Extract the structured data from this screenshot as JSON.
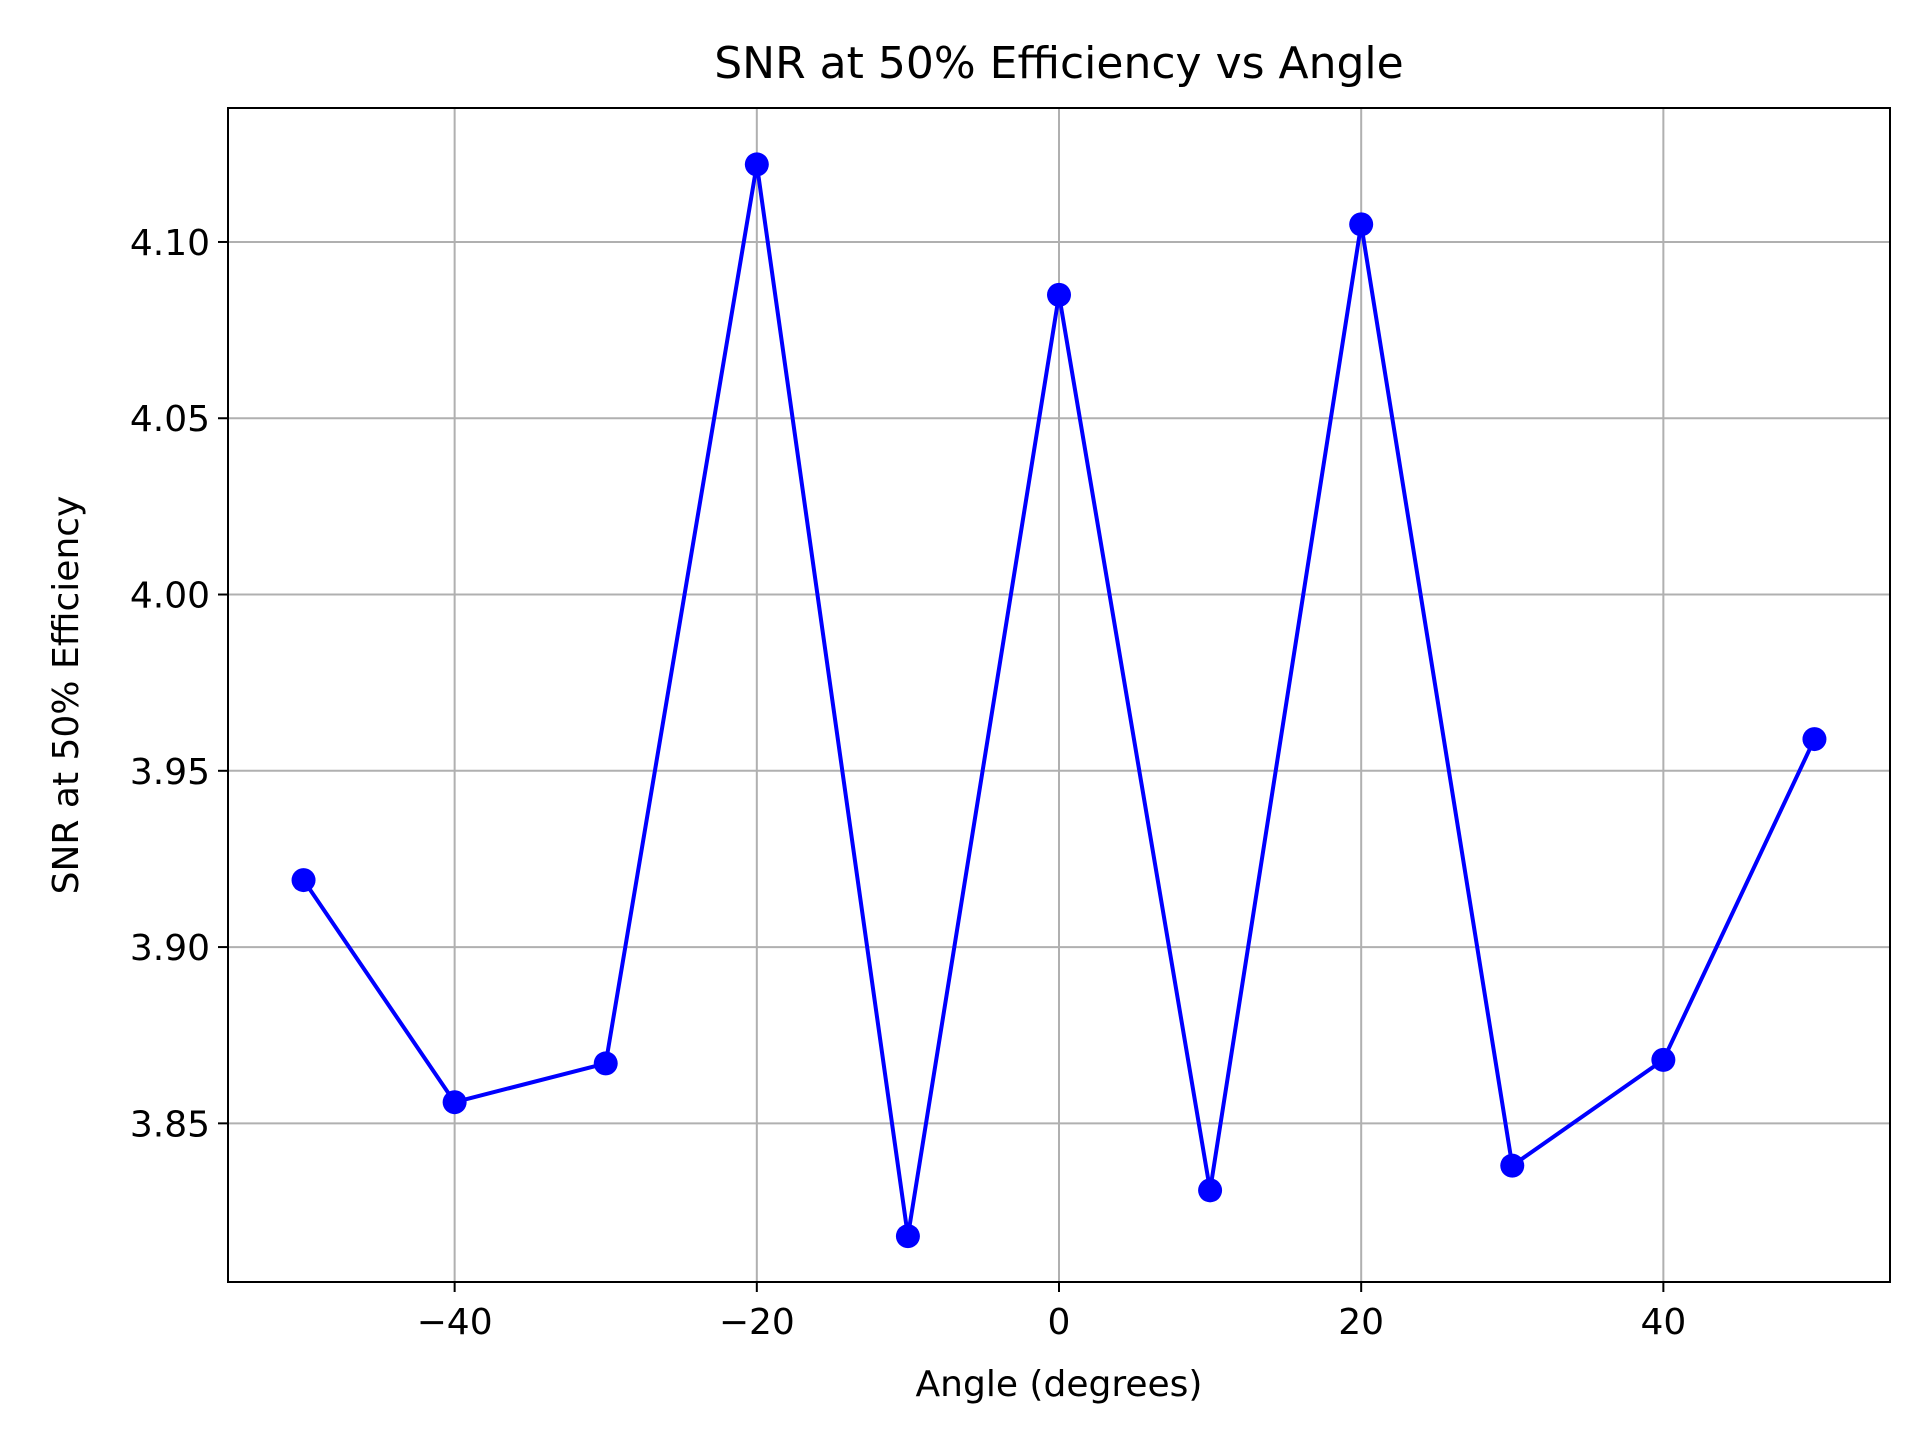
{
  "chart_data": {
    "type": "line",
    "title": "SNR at 50% Efficiency vs Angle",
    "xlabel": "Angle (degrees)",
    "ylabel": "SNR at 50% Efficiency",
    "xlim": [
      -55,
      55
    ],
    "ylim": [
      3.805,
      4.138
    ],
    "xticks": [
      -40,
      -20,
      0,
      20,
      40
    ],
    "xtick_labels": [
      "−40",
      "−20",
      "0",
      "20",
      "40"
    ],
    "yticks": [
      3.85,
      3.9,
      3.95,
      4.0,
      4.05,
      4.1
    ],
    "ytick_labels": [
      "3.85",
      "3.90",
      "3.95",
      "4.00",
      "4.05",
      "4.10"
    ],
    "grid": true,
    "series": [
      {
        "color": "#0000ff",
        "marker": "circle",
        "x": [
          -50,
          -40,
          -30,
          -20,
          -10,
          0,
          10,
          20,
          30,
          40,
          50
        ],
        "y": [
          3.919,
          3.856,
          3.867,
          4.122,
          3.818,
          4.085,
          3.831,
          4.105,
          3.838,
          3.868,
          3.959
        ]
      }
    ]
  }
}
